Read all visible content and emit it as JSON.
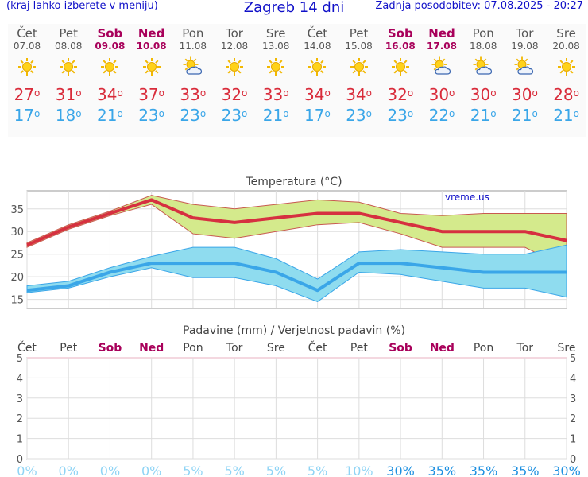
{
  "header": {
    "left": "(kraj lahko izberete v meniju)",
    "title": "Zagreb 14 dni",
    "updated": "Zadnja posodobitev: 07.08.2025 - 20:27"
  },
  "days": [
    {
      "name": "Čet",
      "date": "07.08",
      "weekend": false,
      "icon": "sun-icon",
      "max": "27",
      "min": "17"
    },
    {
      "name": "Pet",
      "date": "08.08",
      "weekend": false,
      "icon": "sun-icon",
      "max": "31",
      "min": "18"
    },
    {
      "name": "Sob",
      "date": "09.08",
      "weekend": true,
      "icon": "sun-icon",
      "max": "34",
      "min": "21"
    },
    {
      "name": "Ned",
      "date": "10.08",
      "weekend": true,
      "icon": "sun-icon",
      "max": "37",
      "min": "23"
    },
    {
      "name": "Pon",
      "date": "11.08",
      "weekend": false,
      "icon": "partly-cloudy-icon",
      "max": "33",
      "min": "23"
    },
    {
      "name": "Tor",
      "date": "12.08",
      "weekend": false,
      "icon": "sun-icon",
      "max": "32",
      "min": "23"
    },
    {
      "name": "Sre",
      "date": "13.08",
      "weekend": false,
      "icon": "sun-icon",
      "max": "33",
      "min": "21"
    },
    {
      "name": "Čet",
      "date": "14.08",
      "weekend": false,
      "icon": "sun-icon",
      "max": "34",
      "min": "17"
    },
    {
      "name": "Pet",
      "date": "15.08",
      "weekend": false,
      "icon": "sun-icon",
      "max": "34",
      "min": "23"
    },
    {
      "name": "Sob",
      "date": "16.08",
      "weekend": true,
      "icon": "sun-icon",
      "max": "32",
      "min": "23"
    },
    {
      "name": "Ned",
      "date": "17.08",
      "weekend": true,
      "icon": "partly-cloudy-icon",
      "max": "30",
      "min": "22"
    },
    {
      "name": "Pon",
      "date": "18.08",
      "weekend": false,
      "icon": "partly-cloudy-icon",
      "max": "30",
      "min": "21"
    },
    {
      "name": "Tor",
      "date": "19.08",
      "weekend": false,
      "icon": "partly-cloudy-icon",
      "max": "30",
      "min": "21"
    },
    {
      "name": "Sre",
      "date": "20.08",
      "weekend": false,
      "icon": "sun-icon",
      "max": "28",
      "min": "21"
    }
  ],
  "colors": {
    "max_line": "#d63040",
    "max_band": "#d4ea8c",
    "min_line": "#3aa6e8",
    "min_band": "#8fdcef",
    "weekend": "#a8005a",
    "precip_prob": "#58b8ee",
    "header": "#1010c8"
  },
  "chart_data": [
    {
      "type": "line",
      "title": "Temperatura (°C)",
      "watermark": "vreme.us",
      "categories": [
        "07.08",
        "08.08",
        "09.08",
        "10.08",
        "11.08",
        "12.08",
        "13.08",
        "14.08",
        "15.08",
        "16.08",
        "17.08",
        "18.08",
        "19.08",
        "20.08"
      ],
      "ylim": [
        13,
        39
      ],
      "yticks": [
        15,
        20,
        25,
        30,
        35
      ],
      "series": [
        {
          "role": "max",
          "values": [
            27,
            31,
            34,
            37,
            33,
            32,
            33,
            34,
            34,
            32,
            30,
            30,
            30,
            28
          ],
          "band_high": [
            27.5,
            31.5,
            34.5,
            38,
            36,
            35,
            36,
            37,
            36.5,
            34,
            33.5,
            34,
            34,
            34
          ],
          "band_low": [
            26.5,
            30.5,
            33.5,
            36,
            29.5,
            28.5,
            30,
            31.5,
            32,
            29.5,
            26.5,
            26.5,
            26.5,
            22
          ]
        },
        {
          "role": "min",
          "values": [
            17,
            18,
            21,
            23,
            23,
            23,
            21,
            17,
            23,
            23,
            22,
            21,
            21,
            21
          ],
          "band_high": [
            18,
            19,
            22,
            24.5,
            26.5,
            26.5,
            24,
            19.5,
            25.5,
            26,
            25.5,
            25,
            25,
            27
          ],
          "band_low": [
            16.5,
            17.5,
            20,
            22,
            19.8,
            19.8,
            18,
            14.5,
            21,
            20.5,
            19,
            17.5,
            17.5,
            15.5
          ]
        }
      ],
      "grid": true
    },
    {
      "type": "bar",
      "title": "Padavine (mm) / Verjetnost padavin (%)",
      "categories": [
        "Čet",
        "Pet",
        "Sob",
        "Ned",
        "Pon",
        "Tor",
        "Sre",
        "Čet",
        "Pet",
        "Sob",
        "Ned",
        "Pon",
        "Tor",
        "Sre"
      ],
      "weekend": [
        false,
        false,
        true,
        true,
        false,
        false,
        false,
        false,
        false,
        true,
        true,
        false,
        false,
        false
      ],
      "precip_mm": [
        0,
        0,
        0,
        0,
        0,
        0,
        0,
        0,
        0,
        0,
        0,
        0,
        0,
        0
      ],
      "probability": [
        "0%",
        "0%",
        "0%",
        "0%",
        "5%",
        "5%",
        "5%",
        "5%",
        "10%",
        "30%",
        "35%",
        "35%",
        "35%",
        "30%"
      ],
      "ylim": [
        0,
        5
      ],
      "yticks": [
        0,
        1,
        2,
        3,
        4,
        5
      ],
      "grid": true
    }
  ]
}
